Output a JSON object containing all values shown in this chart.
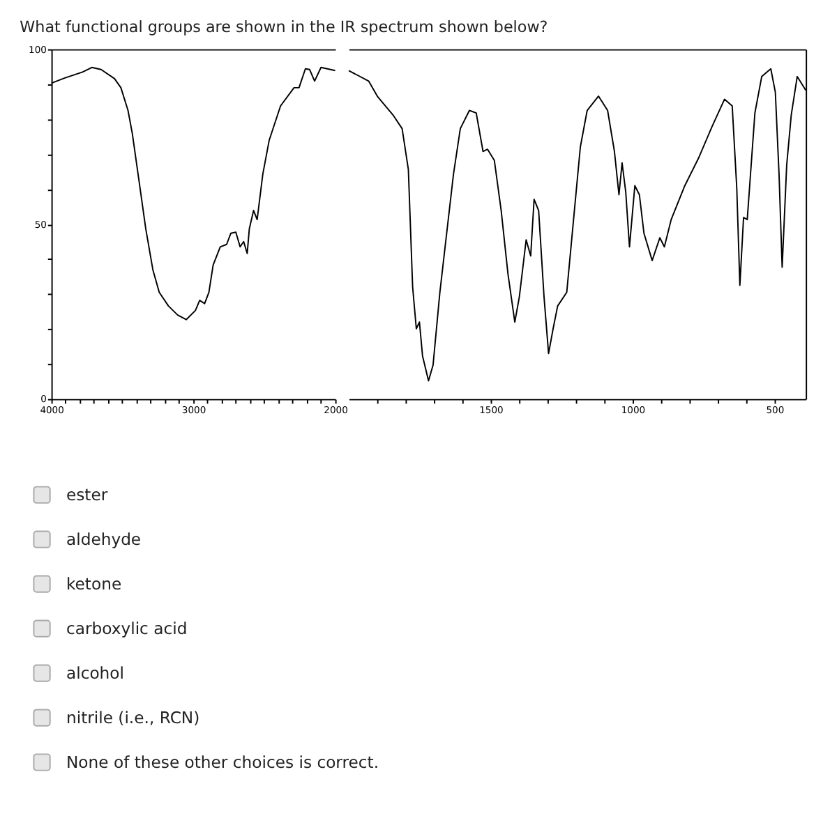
{
  "chart_data": [
    {
      "type": "line",
      "title": "What functional groups are shown in the IR spectrum shown below?",
      "annotations": [
        "ester",
        "aldehyde",
        "ketone",
        "carboxylic acid",
        "alcohol",
        "nitrile (i.e., RCN)",
        "None of these other choices is correct."
      ],
      "xlim": [
        4000,
        2000
      ],
      "ylim": [
        0,
        100
      ],
      "xticks": [
        4000,
        {
          "value": 3900,
          "label": null
        },
        {
          "value": 3800,
          "label": null
        },
        {
          "value": 3700,
          "label": null
        },
        {
          "value": 3600,
          "label": null
        },
        {
          "value": 3500,
          "label": null
        },
        {
          "value": 3400,
          "label": null
        },
        {
          "value": 3300,
          "label": null
        },
        {
          "value": 3200,
          "label": null
        },
        {
          "value": 3100,
          "label": null
        },
        3000,
        {
          "value": 2900,
          "label": null
        },
        {
          "value": 2800,
          "label": null
        },
        {
          "value": 2700,
          "label": null
        },
        {
          "value": 2600,
          "label": null
        },
        {
          "value": 2500,
          "label": null
        },
        {
          "value": 2400,
          "label": null
        },
        {
          "value": 2300,
          "label": null
        },
        {
          "value": 2200,
          "label": null
        },
        {
          "value": 2100,
          "label": null
        },
        2000
      ],
      "yticks": [
        0,
        {
          "value": 10,
          "label": null
        },
        {
          "value": 20,
          "label": null
        },
        {
          "value": 30,
          "label": null
        },
        {
          "value": 40,
          "label": null
        },
        50,
        {
          "value": 60,
          "label": null
        },
        {
          "value": 70,
          "label": null
        },
        {
          "value": 80,
          "label": null
        },
        {
          "value": 90,
          "label": null
        },
        100
      ],
      "grid": false,
      "marker": "none",
      "line_style": "solid",
      "series": [
        {
          "color": "#000000",
          "x": [
            4000,
            3905,
            3780,
            3715,
            3650,
            3555,
            3510,
            3460,
            3430,
            3380,
            3335,
            3285,
            3240,
            3175,
            3110,
            3050,
            2985,
            2955,
            2920,
            2890,
            2860,
            2810,
            2765,
            2735,
            2700,
            2670,
            2645,
            2620,
            2605,
            2575,
            2550,
            2510,
            2465,
            2385,
            2290,
            2255,
            2210,
            2180,
            2145,
            2100,
            2000
          ],
          "values": [
            90.3,
            91.8,
            93.5,
            94.8,
            94.2,
            91.6,
            89,
            82.5,
            76,
            61.7,
            48.7,
            37,
            30.5,
            26.6,
            24,
            22.7,
            25.3,
            28.2,
            27.3,
            30.5,
            38.3,
            43.5,
            44.2,
            47.4,
            47.7,
            43.5,
            45,
            41.6,
            48.7,
            53.9,
            51.3,
            64.3,
            74,
            83.8,
            89,
            89,
            94.4,
            94.2,
            90.9,
            94.8,
            93.9
          ]
        }
      ]
    },
    {
      "type": "line",
      "xlim": [
        2000,
        390
      ],
      "ylim": [
        0,
        100
      ],
      "tick_labels": "x",
      "xticks": [
        {
          "value": 1900,
          "label": null
        },
        {
          "value": 1800,
          "label": null
        },
        {
          "value": 1700,
          "label": null
        },
        {
          "value": 1600,
          "label": null
        },
        1500,
        {
          "value": 1400,
          "label": null
        },
        {
          "value": 1300,
          "label": null
        },
        {
          "value": 1200,
          "label": null
        },
        {
          "value": 1100,
          "label": null
        },
        1000,
        {
          "value": 900,
          "label": null
        },
        {
          "value": 800,
          "label": null
        },
        {
          "value": 700,
          "label": null
        },
        {
          "value": 600,
          "label": null
        },
        500
      ],
      "grid": false,
      "marker": "none",
      "line_style": "solid",
      "series": [
        {
          "color": "#000000",
          "x": [
            2000,
            1930,
            1898,
            1844,
            1812,
            1790,
            1775,
            1762,
            1751,
            1740,
            1719,
            1703,
            1679,
            1655,
            1631,
            1607,
            1575,
            1551,
            1527,
            1511,
            1487,
            1463,
            1439,
            1415,
            1399,
            1375,
            1359,
            1347,
            1331,
            1312,
            1296,
            1280,
            1264,
            1232,
            1208,
            1184,
            1160,
            1120,
            1088,
            1064,
            1048,
            1037,
            1024,
            1011,
            992,
            976,
            960,
            931,
            904,
            888,
            864,
            816,
            768,
            720,
            676,
            649,
            633,
            622,
            609,
            596,
            569,
            545,
            513,
            497,
            484,
            473,
            457,
            441,
            420,
            390
          ],
          "values": [
            93.9,
            90.9,
            86.4,
            81.2,
            77.3,
            65.6,
            32.1,
            20.1,
            22,
            12.3,
            5.2,
            9.7,
            30.5,
            47.4,
            64.3,
            77.3,
            82.5,
            81.8,
            70.8,
            71.4,
            68.2,
            53.9,
            35.7,
            22,
            29.2,
            45.5,
            40.9,
            57.1,
            53.9,
            29.2,
            13,
            20.1,
            26.6,
            30.5,
            51.3,
            72.1,
            82.5,
            86.6,
            82.5,
            70.8,
            58.4,
            67.5,
            59.1,
            43.5,
            61,
            58.4,
            47.4,
            39.6,
            46.1,
            43.5,
            51.3,
            61,
            68.8,
            77.9,
            85.7,
            83.8,
            60.4,
            32.5,
            51.9,
            51.3,
            81.8,
            92.2,
            94.4,
            87.7,
            64.3,
            37.7,
            66.9,
            81.2,
            92.2,
            88.3
          ]
        }
      ]
    }
  ]
}
